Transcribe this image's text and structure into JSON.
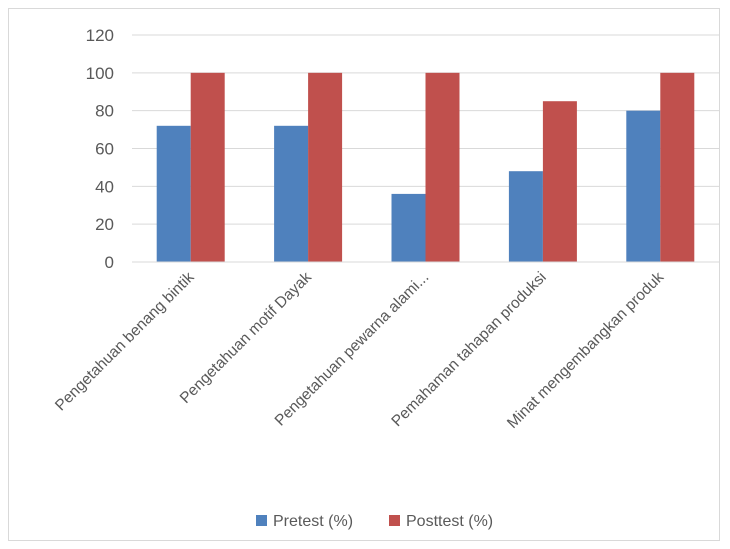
{
  "chart_data": {
    "type": "bar",
    "title": "",
    "xlabel": "",
    "ylabel": "",
    "ylim": [
      0,
      120
    ],
    "yticks": [
      0,
      20,
      40,
      60,
      80,
      100,
      120
    ],
    "grid": true,
    "legend_position": "bottom",
    "categories": [
      "Pengetahuan benang bintik",
      "Pengetahuan motif Dayak",
      "Pengetahuan pewarna alami...",
      "Pemahaman tahapan produksi",
      "Minat mengembangkan produk"
    ],
    "series": [
      {
        "name": "Pretest (%)",
        "color": "#4f81bd",
        "values": [
          72,
          72,
          36,
          48,
          80
        ]
      },
      {
        "name": "Posttest (%)",
        "color": "#c0504d",
        "values": [
          100,
          100,
          100,
          85,
          100
        ]
      }
    ]
  }
}
